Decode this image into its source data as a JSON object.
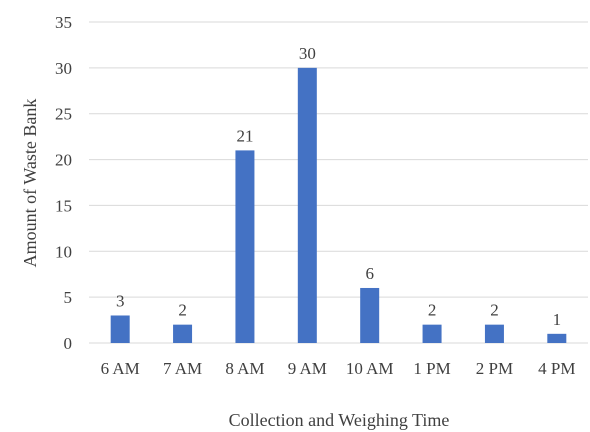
{
  "chart_data": {
    "type": "bar",
    "categories": [
      "6 AM",
      "7 AM",
      "8 AM",
      "9 AM",
      "10 AM",
      "1 PM",
      "2 PM",
      "4 PM"
    ],
    "values": [
      3,
      2,
      21,
      30,
      6,
      2,
      2,
      1
    ],
    "data_labels": [
      "3",
      "2",
      "21",
      "30",
      "6",
      "2",
      "2",
      "1"
    ],
    "title": "",
    "xlabel": "Collection and Weighing Time",
    "ylabel": "Amount of Waste Bank",
    "ylim": [
      0,
      35
    ],
    "yticks": [
      0,
      5,
      10,
      15,
      20,
      25,
      30,
      35
    ],
    "ytick_labels": [
      "0",
      "5",
      "10",
      "15",
      "20",
      "25",
      "30",
      "35"
    ],
    "grid": true,
    "legend": "none",
    "bar_color": "#4472c4"
  }
}
